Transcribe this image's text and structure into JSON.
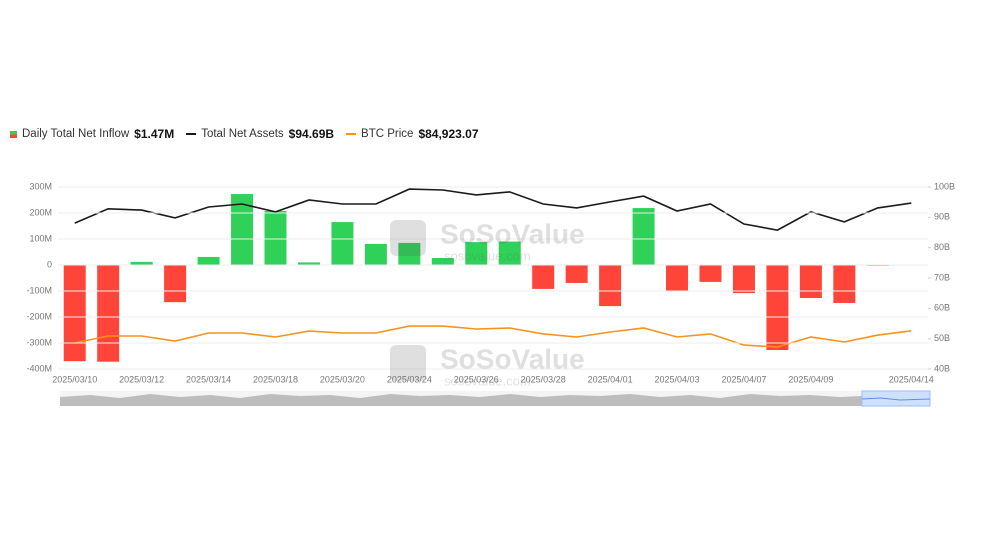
{
  "chart_data": {
    "type": "bar-line",
    "categories": [
      "2025/03/10",
      null,
      "2025/03/12",
      null,
      "2025/03/14",
      null,
      "2025/03/18",
      null,
      "2025/03/20",
      null,
      "2025/03/24",
      null,
      "2025/03/26",
      null,
      "2025/03/28",
      null,
      "2025/04/01",
      null,
      "2025/04/03",
      null,
      "2025/04/07",
      null,
      "2025/04/09",
      null,
      null,
      "2025/04/14"
    ],
    "series": [
      {
        "name": "Daily Total Net Inflow",
        "value_label": "$1.47M",
        "type": "bar",
        "color_positive": "#30d158",
        "color_negative": "#ff453a",
        "values": [
          -370,
          -372,
          12,
          -143,
          31,
          273,
          208,
          10,
          165,
          81,
          85,
          27,
          88,
          90,
          -92,
          -69,
          -158,
          219,
          -100,
          -65,
          -108,
          -327,
          -127,
          -146,
          -0.5,
          1.47
        ]
      },
      {
        "name": "Total Net Assets",
        "value_label": "$94.69B",
        "type": "line",
        "axis": "y2",
        "color": "#1a1a1a",
        "values": [
          88.1,
          92.8,
          92.4,
          89.8,
          93.4,
          94.4,
          91.8,
          95.7,
          94.4,
          94.4,
          99.3,
          99.0,
          97.4,
          98.4,
          94.4,
          93.1,
          95.1,
          97.0,
          92.1,
          94.4,
          87.8,
          85.8,
          91.8,
          88.5,
          93.1,
          94.69
        ]
      },
      {
        "name": "BTC Price",
        "value_label": "$84,923.07",
        "type": "line",
        "axis": "y3",
        "color": "#f7931a",
        "values": [
          78600,
          82200,
          82200,
          79600,
          83800,
          83800,
          81700,
          84800,
          83800,
          83800,
          87400,
          87400,
          85900,
          86400,
          83300,
          81700,
          84300,
          86400,
          81700,
          83300,
          77500,
          76500,
          81700,
          79100,
          82700,
          84923.07
        ]
      }
    ],
    "ylim": [
      -400,
      300
    ],
    "yticks": [
      {
        "value": -400,
        "label": "-400M"
      },
      {
        "value": -300,
        "label": "-300M"
      },
      {
        "value": -200,
        "label": "-200M"
      },
      {
        "value": -100,
        "label": "-100M"
      },
      0,
      {
        "value": 100,
        "label": "100M"
      },
      {
        "value": 200,
        "label": "200M"
      },
      {
        "value": 300,
        "label": "300M"
      }
    ],
    "y2lim": [
      40,
      100
    ],
    "y2ticks": [
      {
        "value": 40,
        "label": "40B"
      },
      {
        "value": 50,
        "label": "50B"
      },
      {
        "value": 60,
        "label": "60B"
      },
      {
        "value": 70,
        "label": "70B"
      },
      {
        "value": 80,
        "label": "80B"
      },
      {
        "value": 90,
        "label": "90B"
      },
      {
        "value": 100,
        "label": "100B"
      }
    ],
    "y3lim": [
      65000,
      160000
    ],
    "grid": true,
    "watermark": "SoSoValue",
    "watermark_url": "sosovalue.com"
  }
}
